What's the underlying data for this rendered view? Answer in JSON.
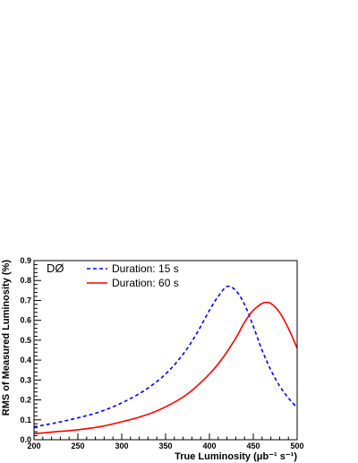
{
  "chart_data": {
    "type": "line",
    "experiment_label": "DØ",
    "xlabel": "True Luminosity (μb⁻¹ s⁻¹)",
    "ylabel": "RMS of Measured Luminosity (%)",
    "xlim": [
      200,
      500
    ],
    "ylim": [
      0,
      0.9
    ],
    "xticks": [
      "200",
      "250",
      "300",
      "350",
      "400",
      "450",
      "500"
    ],
    "yticks": [
      "0.0",
      "0.1",
      "0.2",
      "0.3",
      "0.4",
      "0.5",
      "0.6",
      "0.7",
      "0.8",
      "0.9"
    ],
    "grid": false,
    "legend_position": "top-left",
    "series": [
      {
        "name": "Duration: 15 s",
        "color": "#0000ff",
        "dashed": true,
        "x": [
          200,
          225,
          250,
          275,
          300,
          325,
          350,
          370,
          385,
          400,
          410,
          420,
          430,
          440,
          450,
          460,
          470,
          480,
          490,
          500
        ],
        "y": [
          0.065,
          0.085,
          0.11,
          0.14,
          0.185,
          0.245,
          0.33,
          0.43,
          0.53,
          0.65,
          0.72,
          0.77,
          0.75,
          0.68,
          0.57,
          0.45,
          0.35,
          0.27,
          0.21,
          0.16
        ]
      },
      {
        "name": "Duration: 60 s",
        "color": "#ff0000",
        "dashed": false,
        "x": [
          200,
          225,
          250,
          275,
          300,
          325,
          350,
          375,
          400,
          415,
          430,
          440,
          450,
          460,
          465,
          470,
          480,
          490,
          500
        ],
        "y": [
          0.03,
          0.04,
          0.05,
          0.065,
          0.09,
          0.12,
          0.165,
          0.23,
          0.33,
          0.41,
          0.51,
          0.59,
          0.65,
          0.685,
          0.69,
          0.685,
          0.64,
          0.56,
          0.46
        ]
      }
    ]
  }
}
